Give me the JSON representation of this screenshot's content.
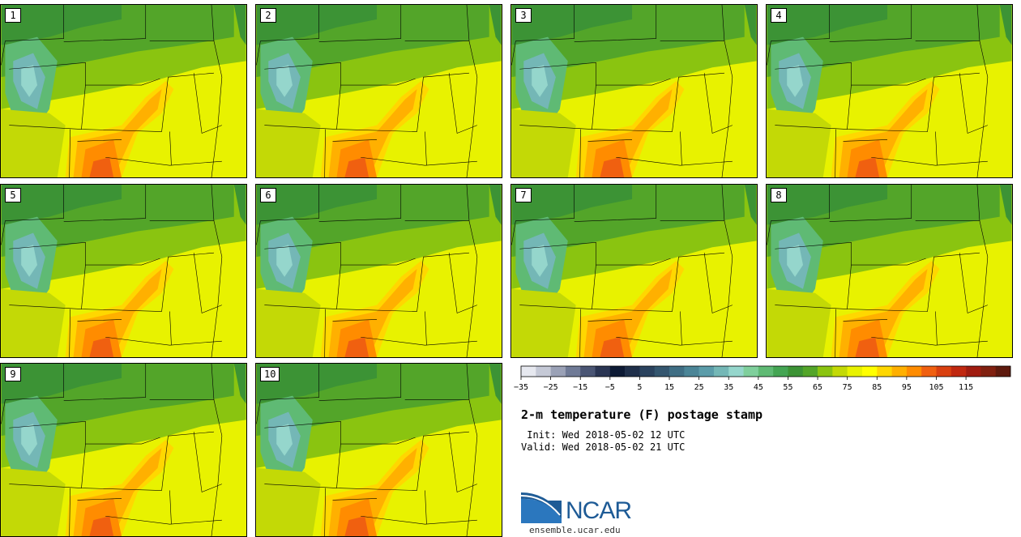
{
  "panels": [
    {
      "label": "1"
    },
    {
      "label": "2"
    },
    {
      "label": "3"
    },
    {
      "label": "4"
    },
    {
      "label": "5"
    },
    {
      "label": "6"
    },
    {
      "label": "7"
    },
    {
      "label": "8"
    },
    {
      "label": "9"
    },
    {
      "label": "10"
    }
  ],
  "legend": {
    "colors": [
      "#e6e8ef",
      "#c5c9d6",
      "#9aa1b6",
      "#6f7a96",
      "#4a5574",
      "#2a3553",
      "#0d1a35",
      "#1f2f4a",
      "#2a425e",
      "#34566f",
      "#3f6e84",
      "#4b8597",
      "#5b9ca9",
      "#74b7b6",
      "#95d6cc",
      "#7fcf9c",
      "#5fba74",
      "#44a553",
      "#3c9335",
      "#53a529",
      "#8ac410",
      "#c3d906",
      "#e8f200",
      "#ffff00",
      "#ffd700",
      "#ffb000",
      "#ff8c00",
      "#f06010",
      "#d94010",
      "#c02810",
      "#a01c10",
      "#802010",
      "#5e1a0e"
    ],
    "tick_labels": [
      "−35",
      "−25",
      "−15",
      "−5",
      "5",
      "15",
      "25",
      "35",
      "45",
      "55",
      "65",
      "75",
      "85",
      "95",
      "105",
      "115"
    ]
  },
  "title": "2-m temperature (F) postage stamp",
  "init": " Init: Wed 2018-05-02 12 UTC",
  "valid": "Valid: Wed 2018-05-02 21 UTC",
  "logo": {
    "text": "NCAR",
    "url": "ensemble.ucar.edu"
  }
}
